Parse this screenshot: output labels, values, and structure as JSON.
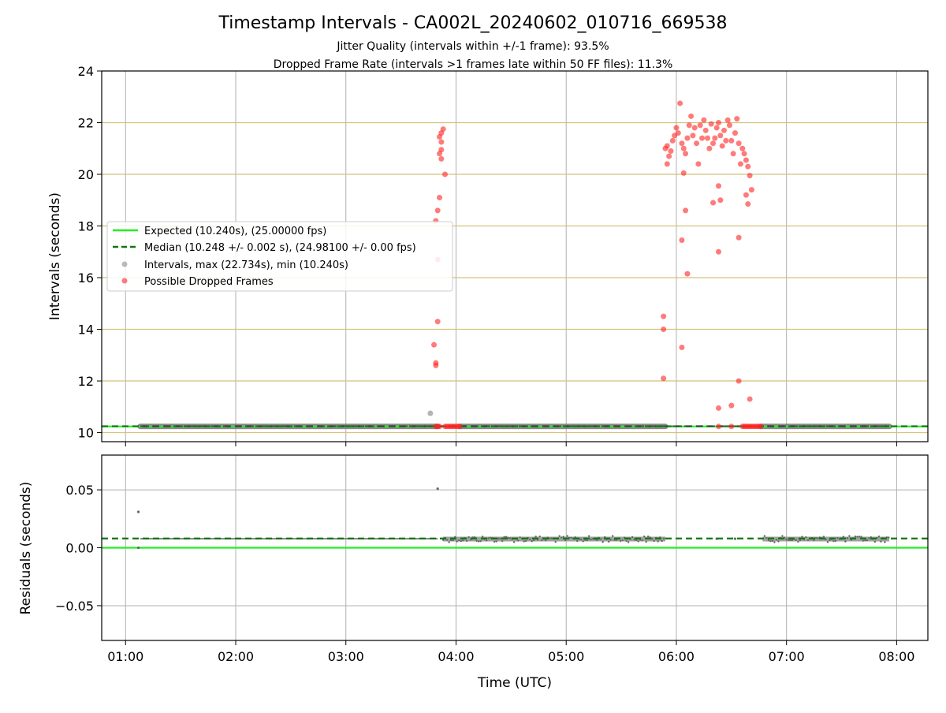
{
  "chart_data": [
    {
      "type": "scatter",
      "title": "Timestamp Intervals - CA002L_20240602_010716_669538",
      "subtitle_lines": [
        "Jitter Quality (intervals within +/-1 frame): 93.5%",
        "Dropped Frame Rate (intervals >1 frames late within 50 FF files): 11.3%"
      ],
      "ylabel": "Intervals (seconds)",
      "xlim": [
        "00:47",
        "08:17"
      ],
      "ylim": [
        9.65,
        24
      ],
      "yticks": [
        10,
        12,
        14,
        16,
        18,
        20,
        22,
        24
      ],
      "grid": true,
      "horizontal_reference_lines": [
        10,
        12,
        14,
        16,
        18,
        20,
        22
      ],
      "legend_position": "upper-left",
      "expected_interval": 10.24,
      "median_interval": 10.248,
      "series": [
        {
          "name": "Expected (10.240s), (25.00000 fps)",
          "style": "solid-line",
          "color": "#22ee22",
          "y": 10.24
        },
        {
          "name": "Median (10.248 +/- 0.002 s), (24.98100 +/- 0.00 fps)",
          "style": "dashed-line",
          "color": "#117711",
          "y": 10.248
        },
        {
          "name": "Intervals, max (22.734s), min (10.240s)",
          "style": "scatter",
          "color": "#777777",
          "segments": [
            [
              "01:08",
              "03:50"
            ],
            [
              "04:02",
              "05:54"
            ],
            [
              "06:46",
              "07:56"
            ]
          ],
          "outliers": [
            [
              "03:46",
              10.75
            ]
          ]
        },
        {
          "name": "Possible Dropped Frames",
          "style": "scatter",
          "color": "#ff2222",
          "points": [
            [
              "03:49",
              10.24
            ],
            [
              "03:50",
              10.24
            ],
            [
              "03:51",
              10.24
            ],
            [
              "03:54",
              10.24
            ],
            [
              "03:55",
              10.24
            ],
            [
              "03:56",
              10.24
            ],
            [
              "03:57",
              10.24
            ],
            [
              "03:58",
              10.24
            ],
            [
              "03:59",
              10.24
            ],
            [
              "04:00",
              10.24
            ],
            [
              "04:01",
              10.24
            ],
            [
              "04:02",
              10.24
            ],
            [
              "03:49",
              12.6
            ],
            [
              "03:49",
              12.7
            ],
            [
              "03:48",
              13.4
            ],
            [
              "03:50",
              14.3
            ],
            [
              "03:50",
              16.7
            ],
            [
              "03:49",
              18.2
            ],
            [
              "03:50",
              18.6
            ],
            [
              "03:51",
              19.1
            ],
            [
              "03:54",
              20.0
            ],
            [
              "03:52",
              20.6
            ],
            [
              "03:51",
              20.8
            ],
            [
              "03:52",
              20.95
            ],
            [
              "03:52",
              21.25
            ],
            [
              "03:51",
              21.45
            ],
            [
              "03:52",
              21.6
            ],
            [
              "03:53",
              21.75
            ],
            [
              "05:53",
              14.5
            ],
            [
              "05:53",
              14.0
            ],
            [
              "05:53",
              12.1
            ],
            [
              "06:03",
              13.3
            ],
            [
              "06:03",
              17.45
            ],
            [
              "06:06",
              16.15
            ],
            [
              "06:05",
              18.6
            ],
            [
              "06:04",
              20.05
            ],
            [
              "05:55",
              20.4
            ],
            [
              "05:56",
              20.7
            ],
            [
              "05:54",
              21.0
            ],
            [
              "05:55",
              21.1
            ],
            [
              "05:57",
              20.9
            ],
            [
              "05:58",
              21.3
            ],
            [
              "05:59",
              21.5
            ],
            [
              "06:00",
              21.8
            ],
            [
              "06:01",
              21.6
            ],
            [
              "06:02",
              22.75
            ],
            [
              "06:03",
              21.2
            ],
            [
              "06:04",
              21.0
            ],
            [
              "06:05",
              20.8
            ],
            [
              "06:06",
              21.4
            ],
            [
              "06:07",
              21.9
            ],
            [
              "06:08",
              22.25
            ],
            [
              "06:09",
              21.5
            ],
            [
              "06:10",
              21.8
            ],
            [
              "06:11",
              21.2
            ],
            [
              "06:12",
              20.4
            ],
            [
              "06:13",
              21.9
            ],
            [
              "06:14",
              21.4
            ],
            [
              "06:15",
              22.1
            ],
            [
              "06:16",
              21.7
            ],
            [
              "06:17",
              21.4
            ],
            [
              "06:18",
              21.0
            ],
            [
              "06:19",
              21.95
            ],
            [
              "06:20",
              21.2
            ],
            [
              "06:21",
              21.4
            ],
            [
              "06:22",
              21.8
            ],
            [
              "06:23",
              22.0
            ],
            [
              "06:24",
              21.5
            ],
            [
              "06:25",
              21.1
            ],
            [
              "06:26",
              21.7
            ],
            [
              "06:27",
              21.3
            ],
            [
              "06:28",
              22.1
            ],
            [
              "06:29",
              21.9
            ],
            [
              "06:30",
              21.3
            ],
            [
              "06:31",
              20.8
            ],
            [
              "06:32",
              21.6
            ],
            [
              "06:33",
              22.15
            ],
            [
              "06:34",
              21.2
            ],
            [
              "06:35",
              20.4
            ],
            [
              "06:36",
              21.0
            ],
            [
              "06:37",
              20.8
            ],
            [
              "06:38",
              20.55
            ],
            [
              "06:39",
              20.3
            ],
            [
              "06:40",
              19.95
            ],
            [
              "06:41",
              19.4
            ],
            [
              "06:20",
              18.9
            ],
            [
              "06:24",
              19.0
            ],
            [
              "06:23",
              19.55
            ],
            [
              "06:38",
              19.2
            ],
            [
              "06:39",
              18.85
            ],
            [
              "06:34",
              17.55
            ],
            [
              "06:23",
              17.0
            ],
            [
              "06:34",
              12.0
            ],
            [
              "06:30",
              11.05
            ],
            [
              "06:40",
              11.3
            ],
            [
              "06:23",
              10.95
            ],
            [
              "06:23",
              10.24
            ],
            [
              "06:30",
              10.24
            ],
            [
              "06:36",
              10.24
            ],
            [
              "06:37",
              10.24
            ],
            [
              "06:38",
              10.24
            ],
            [
              "06:39",
              10.24
            ],
            [
              "06:40",
              10.24
            ],
            [
              "06:41",
              10.24
            ],
            [
              "06:42",
              10.24
            ],
            [
              "06:43",
              10.24
            ],
            [
              "06:44",
              10.24
            ],
            [
              "06:45",
              10.24
            ],
            [
              "06:46",
              10.24
            ]
          ]
        }
      ]
    },
    {
      "type": "scatter",
      "ylabel": "Residuals (seconds)",
      "xlabel": "Time (UTC)",
      "xlim": [
        "00:47",
        "08:17"
      ],
      "ylim": [
        -0.08,
        0.08
      ],
      "yticks": [
        -0.05,
        0.0,
        0.05
      ],
      "ytick_labels": [
        "−0.05",
        "0.00",
        "0.05"
      ],
      "xticks": [
        "01:00",
        "02:00",
        "03:00",
        "04:00",
        "05:00",
        "06:00",
        "07:00",
        "08:00"
      ],
      "grid": true,
      "series": [
        {
          "name": "Expected",
          "style": "solid-line",
          "color": "#22ee22",
          "y": 0.0
        },
        {
          "name": "Median",
          "style": "dashed-line",
          "color": "#117711",
          "y": 0.008
        },
        {
          "name": "Residuals",
          "style": "scatter",
          "color": "#777777",
          "segments": [
            [
              "01:08",
              "03:50",
              0.0078
            ],
            [
              "03:53",
              "05:54",
              0.0075
            ],
            [
              "06:47",
              "07:56",
              0.0075
            ]
          ],
          "outliers": [
            [
              "01:07",
              0.031
            ],
            [
              "01:07",
              0.0
            ],
            [
              "03:50",
              0.051
            ],
            [
              "06:22",
              0.0078
            ],
            [
              "06:32",
              0.0078
            ]
          ]
        }
      ]
    }
  ]
}
